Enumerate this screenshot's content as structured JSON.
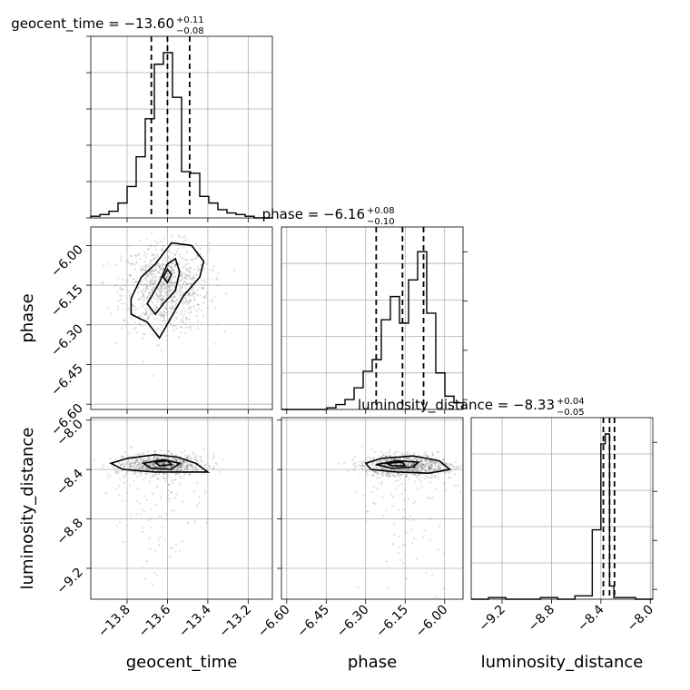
{
  "chart_data": {
    "type": "corner",
    "params": [
      {
        "name": "geocent_time",
        "range": [
          -13.98,
          -13.08
        ],
        "ticks": [
          -13.8,
          -13.6,
          -13.4,
          -13.2
        ],
        "tick_labels": [
          "−13.8",
          "−13.6",
          "−13.4",
          "−13.2"
        ],
        "median": -13.6,
        "plus": 0.11,
        "minus": 0.08,
        "title": {
          "main": "geocent_time = −13.60",
          "sup": "+0.11",
          "sub": "−0.08"
        },
        "hist": [
          0.01,
          0.02,
          0.04,
          0.09,
          0.19,
          0.37,
          0.6,
          0.93,
          1.0,
          0.73,
          0.28,
          0.27,
          0.13,
          0.09,
          0.05,
          0.03,
          0.02,
          0.01,
          0.0,
          0.0
        ]
      },
      {
        "name": "phase",
        "range": [
          -6.62,
          -5.93
        ],
        "ticks": [
          -6.6,
          -6.45,
          -6.3,
          -6.15,
          -6.0
        ],
        "tick_labels": [
          "−6.60",
          "−6.45",
          "−6.30",
          "−6.15",
          "−6.00"
        ],
        "median": -6.16,
        "plus": 0.08,
        "minus": 0.1,
        "title": {
          "main": "phase = −6.16",
          "sup": "+0.08",
          "sub": "−0.10"
        },
        "hist": [
          0.0,
          0.0,
          0.0,
          0.0,
          0.0,
          0.01,
          0.03,
          0.06,
          0.13,
          0.23,
          0.3,
          0.54,
          0.68,
          0.52,
          0.78,
          0.95,
          0.58,
          0.22,
          0.08,
          0.04
        ]
      },
      {
        "name": "luminosity_distance",
        "range": [
          -9.45,
          -7.98
        ],
        "ticks": [
          -9.2,
          -8.8,
          -8.4,
          -8.0
        ],
        "tick_labels": [
          "−9.2",
          "−8.8",
          "−8.4",
          "−8.0"
        ],
        "median": -8.33,
        "plus": 0.04,
        "minus": 0.05,
        "title": {
          "main": "luminosity_distance = −8.33",
          "sup": "+0.04",
          "sub": "−0.05"
        },
        "hist_edges": [
          -9.45,
          -9.31,
          -9.17,
          -9.03,
          -8.89,
          -8.75,
          -8.61,
          -8.47,
          -8.4,
          -8.365,
          -8.33,
          -8.295,
          -8.26,
          -8.12,
          -7.98
        ],
        "hist": [
          0.0,
          0.01,
          0.0,
          0.0,
          0.01,
          0.0,
          0.02,
          0.42,
          0.94,
          1.0,
          0.08,
          0.01,
          0.01,
          0.0
        ]
      }
    ],
    "pairs": [
      {
        "x": "geocent_time",
        "y": "phase",
        "contours": [
          {
            "level": "outer",
            "points": [
              [
                -13.78,
                -6.2
              ],
              [
                -13.73,
                -6.12
              ],
              [
                -13.66,
                -6.07
              ],
              [
                -13.58,
                -5.99
              ],
              [
                -13.48,
                -6.0
              ],
              [
                -13.42,
                -6.06
              ],
              [
                -13.44,
                -6.12
              ],
              [
                -13.52,
                -6.19
              ],
              [
                -13.58,
                -6.27
              ],
              [
                -13.64,
                -6.35
              ],
              [
                -13.7,
                -6.29
              ],
              [
                -13.78,
                -6.26
              ]
            ]
          },
          {
            "level": "middle",
            "points": [
              [
                -13.7,
                -6.22
              ],
              [
                -13.64,
                -6.14
              ],
              [
                -13.6,
                -6.07
              ],
              [
                -13.56,
                -6.05
              ],
              [
                -13.54,
                -6.1
              ],
              [
                -13.56,
                -6.17
              ],
              [
                -13.62,
                -6.22
              ],
              [
                -13.66,
                -6.26
              ]
            ]
          },
          {
            "level": "inner",
            "points": [
              [
                -13.62,
                -6.12
              ],
              [
                -13.6,
                -6.09
              ],
              [
                -13.58,
                -6.11
              ],
              [
                -13.6,
                -6.14
              ]
            ]
          }
        ]
      },
      {
        "x": "geocent_time",
        "y": "luminosity_distance",
        "contours": [
          {
            "level": "outer",
            "points": [
              [
                -13.88,
                -8.35
              ],
              [
                -13.8,
                -8.31
              ],
              [
                -13.66,
                -8.28
              ],
              [
                -13.55,
                -8.3
              ],
              [
                -13.46,
                -8.35
              ],
              [
                -13.4,
                -8.42
              ],
              [
                -13.52,
                -8.42
              ],
              [
                -13.66,
                -8.42
              ],
              [
                -13.82,
                -8.4
              ]
            ]
          },
          {
            "level": "middle",
            "points": [
              [
                -13.72,
                -8.35
              ],
              [
                -13.62,
                -8.32
              ],
              [
                -13.54,
                -8.35
              ],
              [
                -13.58,
                -8.4
              ],
              [
                -13.68,
                -8.39
              ]
            ]
          },
          {
            "level": "inner",
            "points": [
              [
                -13.66,
                -8.34
              ],
              [
                -13.6,
                -8.33
              ],
              [
                -13.58,
                -8.36
              ],
              [
                -13.64,
                -8.37
              ]
            ]
          }
        ]
      },
      {
        "x": "phase",
        "y": "luminosity_distance",
        "contours": [
          {
            "level": "outer",
            "points": [
              [
                -6.3,
                -8.35
              ],
              [
                -6.24,
                -8.31
              ],
              [
                -6.12,
                -8.29
              ],
              [
                -6.02,
                -8.33
              ],
              [
                -5.98,
                -8.4
              ],
              [
                -6.06,
                -8.43
              ],
              [
                -6.18,
                -8.42
              ],
              [
                -6.28,
                -8.4
              ]
            ]
          },
          {
            "level": "middle",
            "points": [
              [
                -6.26,
                -8.36
              ],
              [
                -6.18,
                -8.33
              ],
              [
                -6.1,
                -8.34
              ],
              [
                -6.12,
                -8.38
              ],
              [
                -6.2,
                -8.39
              ]
            ]
          },
          {
            "level": "inner",
            "points": [
              [
                -6.22,
                -8.35
              ],
              [
                -6.16,
                -8.34
              ],
              [
                -6.15,
                -8.37
              ],
              [
                -6.2,
                -8.37
              ]
            ]
          }
        ]
      }
    ]
  }
}
